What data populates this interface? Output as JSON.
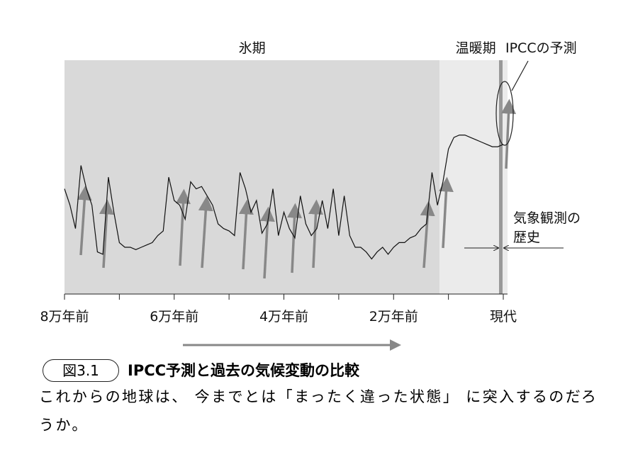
{
  "chart_data": {
    "type": "line",
    "x": [
      -80000,
      -79000,
      -78000,
      -77000,
      -76000,
      -75000,
      -74000,
      -73000,
      -72000,
      -71000,
      -70000,
      -69000,
      -68000,
      -67000,
      -66000,
      -65000,
      -64000,
      -63000,
      -62000,
      -61000,
      -60000,
      -59000,
      -58000,
      -57000,
      -56000,
      -55000,
      -54000,
      -53000,
      -52000,
      -51000,
      -50000,
      -49000,
      -48000,
      -47000,
      -46000,
      -45000,
      -44000,
      -43000,
      -42000,
      -41000,
      -40000,
      -39000,
      -38000,
      -37000,
      -36000,
      -35000,
      -34000,
      -33000,
      -32000,
      -31000,
      -30000,
      -29000,
      -28000,
      -27000,
      -26000,
      -25000,
      -24000,
      -23000,
      -22000,
      -21000,
      -20000,
      -19000,
      -18000,
      -17000,
      -16000,
      -15000,
      -14000,
      -13000,
      -12000,
      -11000,
      -10000,
      -9000,
      -8000,
      -7000,
      -6000,
      -5000,
      -4000,
      -3000,
      -2000,
      -1000,
      0
    ],
    "series": [
      {
        "color": "#111111",
        "values": [
          45,
          38,
          28,
          55,
          45,
          38,
          18,
          17,
          50,
          35,
          22,
          20,
          20,
          19,
          20,
          21,
          22,
          25,
          27,
          50,
          40,
          38,
          32,
          48,
          45,
          46,
          42,
          38,
          30,
          28,
          27,
          25,
          52,
          45,
          35,
          40,
          26,
          30,
          45,
          25,
          35,
          28,
          24,
          42,
          30,
          25,
          28,
          40,
          28,
          45,
          25,
          42,
          25,
          20,
          20,
          18,
          15,
          18,
          20,
          17,
          20,
          22,
          22,
          24,
          25,
          28,
          30,
          52,
          38,
          48,
          62,
          67,
          68,
          68,
          67,
          66,
          65,
          64,
          63,
          63,
          64
        ]
      }
    ],
    "xlim": [
      -80000,
      0
    ],
    "ylim": [
      0,
      100
    ],
    "xticks": [
      {
        "value": -80000,
        "label": "8万年前"
      },
      {
        "value": -60000,
        "label": "6万年前"
      },
      {
        "value": -40000,
        "label": "4万年前"
      },
      {
        "value": -20000,
        "label": "2万年前"
      },
      {
        "value": 0,
        "label": "現代"
      }
    ],
    "xminor_ticks": [
      -70000,
      -50000,
      -30000,
      -10000
    ],
    "regions": [
      {
        "label": "氷期",
        "from": -80000,
        "to": -11600,
        "color": "#d9d9d9"
      },
      {
        "label": "温暖期",
        "from": -11600,
        "to": 0,
        "color": "#ebebeb"
      }
    ],
    "ipcc_label": "IPCCの予測",
    "observation_label": [
      "気象観測の",
      "歴史"
    ]
  },
  "caption": {
    "label": "図3.1",
    "title": "IPCC予測と過去の気候変動の比較",
    "text": "これからの地球は、 今までとは「まったく違った状態」 に突入するのだろうか。"
  }
}
